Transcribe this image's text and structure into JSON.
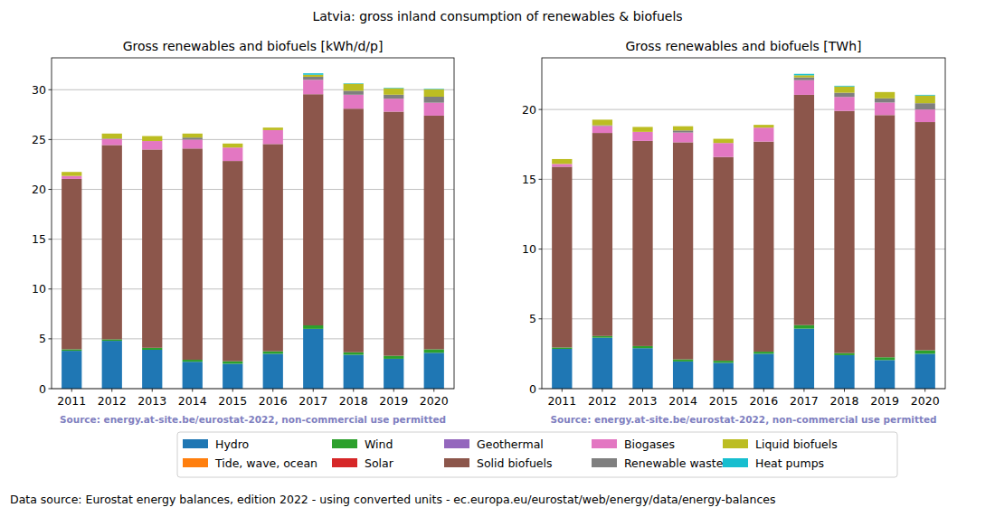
{
  "page": {
    "title": "Latvia: gross inland consumption of renewables & biofuels",
    "footer": "Data source: Eurostat energy balances, edition 2022 - using converted units - ec.europa.eu/eurostat/web/energy/data/energy-balances"
  },
  "chart_data": [
    {
      "type": "bar",
      "title": "Gross renewables and biofuels [kWh/d/p]",
      "stacked": true,
      "grid": true,
      "legend": "bottom",
      "annotations": [
        "Source: energy.at-site.be/eurostat-2022, non-commercial use permitted"
      ],
      "categories": [
        "2011",
        "2012",
        "2013",
        "2014",
        "2015",
        "2016",
        "2017",
        "2018",
        "2019",
        "2020"
      ],
      "ylim": [
        0,
        33.2
      ],
      "yticks": [
        0,
        5,
        10,
        15,
        20,
        25,
        30
      ],
      "series": [
        {
          "name": "Hydro",
          "color": "#1f77b4",
          "values": [
            3.8,
            4.8,
            3.9,
            2.7,
            2.5,
            3.5,
            6.0,
            3.4,
            3.0,
            3.6
          ]
        },
        {
          "name": "Tide, wave, ocean",
          "color": "#ff7f0e",
          "values": [
            0,
            0,
            0,
            0,
            0,
            0,
            0,
            0,
            0,
            0
          ]
        },
        {
          "name": "Wind",
          "color": "#2ca02c",
          "values": [
            0.15,
            0.15,
            0.2,
            0.2,
            0.25,
            0.25,
            0.35,
            0.25,
            0.3,
            0.35
          ]
        },
        {
          "name": "Solar",
          "color": "#d62728",
          "values": [
            0,
            0,
            0,
            0,
            0,
            0,
            0,
            0,
            0,
            0
          ]
        },
        {
          "name": "Geothermal",
          "color": "#9467bd",
          "values": [
            0,
            0,
            0,
            0,
            0,
            0,
            0,
            0,
            0,
            0
          ]
        },
        {
          "name": "Solid biofuels",
          "color": "#8c564b",
          "values": [
            17.1,
            19.5,
            19.9,
            21.2,
            20.1,
            20.8,
            23.2,
            24.45,
            24.5,
            23.45
          ]
        },
        {
          "name": "Biogases",
          "color": "#e377c2",
          "values": [
            0.3,
            0.6,
            0.85,
            0.9,
            1.35,
            1.4,
            1.45,
            1.4,
            1.3,
            1.3
          ]
        },
        {
          "name": "Renewable waste",
          "color": "#7f7f7f",
          "values": [
            0,
            0.05,
            0,
            0.2,
            0,
            0,
            0.3,
            0.4,
            0.4,
            0.6
          ]
        },
        {
          "name": "Liquid biofuels",
          "color": "#bcbd22",
          "values": [
            0.4,
            0.5,
            0.5,
            0.4,
            0.4,
            0.25,
            0.2,
            0.7,
            0.65,
            0.75
          ]
        },
        {
          "name": "Heat pumps",
          "color": "#17becf",
          "values": [
            0,
            0,
            0,
            0,
            0,
            0,
            0.15,
            0.05,
            0.05,
            0.05
          ]
        }
      ]
    },
    {
      "type": "bar",
      "title": "Gross renewables and biofuels [TWh]",
      "stacked": true,
      "grid": true,
      "annotations": [
        "Source: energy.at-site.be/eurostat-2022, non-commercial use permitted"
      ],
      "categories": [
        "2011",
        "2012",
        "2013",
        "2014",
        "2015",
        "2016",
        "2017",
        "2018",
        "2019",
        "2020"
      ],
      "ylim": [
        0,
        23.7
      ],
      "yticks": [
        0,
        5,
        10,
        15,
        20
      ],
      "series": [
        {
          "name": "Hydro",
          "color": "#1f77b4",
          "values": [
            2.85,
            3.65,
            2.9,
            1.95,
            1.85,
            2.5,
            4.3,
            2.4,
            2.05,
            2.5
          ]
        },
        {
          "name": "Tide, wave, ocean",
          "color": "#ff7f0e",
          "values": [
            0,
            0,
            0,
            0,
            0,
            0,
            0,
            0,
            0,
            0
          ]
        },
        {
          "name": "Wind",
          "color": "#2ca02c",
          "values": [
            0.1,
            0.12,
            0.15,
            0.15,
            0.15,
            0.15,
            0.25,
            0.15,
            0.2,
            0.25
          ]
        },
        {
          "name": "Solar",
          "color": "#d62728",
          "values": [
            0,
            0,
            0,
            0,
            0,
            0,
            0,
            0,
            0,
            0
          ]
        },
        {
          "name": "Geothermal",
          "color": "#9467bd",
          "values": [
            0,
            0,
            0,
            0,
            0,
            0,
            0,
            0,
            0,
            0
          ]
        },
        {
          "name": "Solid biofuels",
          "color": "#8c564b",
          "values": [
            12.95,
            14.55,
            14.7,
            15.55,
            14.6,
            15.05,
            16.5,
            17.35,
            17.35,
            16.35
          ]
        },
        {
          "name": "Biogases",
          "color": "#e377c2",
          "values": [
            0.2,
            0.5,
            0.65,
            0.7,
            1.0,
            1.0,
            1.05,
            1.0,
            0.9,
            0.9
          ]
        },
        {
          "name": "Renewable waste",
          "color": "#7f7f7f",
          "values": [
            0,
            0.05,
            0,
            0.15,
            0,
            0,
            0.2,
            0.3,
            0.3,
            0.45
          ]
        },
        {
          "name": "Liquid biofuels",
          "color": "#bcbd22",
          "values": [
            0.35,
            0.4,
            0.35,
            0.3,
            0.3,
            0.2,
            0.15,
            0.45,
            0.45,
            0.55
          ]
        },
        {
          "name": "Heat pumps",
          "color": "#17becf",
          "values": [
            0,
            0,
            0,
            0,
            0,
            0,
            0.1,
            0.05,
            0,
            0.05
          ]
        }
      ]
    }
  ]
}
